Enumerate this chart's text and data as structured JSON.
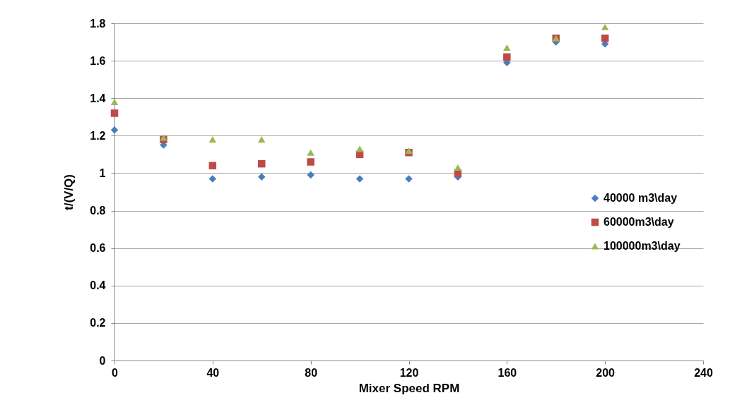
{
  "chart_data": {
    "type": "scatter",
    "xlabel": "Mixer Speed RPM",
    "ylabel": "t/(V/Q)",
    "x": [
      0,
      20,
      40,
      60,
      80,
      100,
      120,
      140,
      160,
      180,
      200
    ],
    "xlim": [
      0,
      240
    ],
    "xticks": [
      0,
      40,
      80,
      120,
      160,
      200,
      240
    ],
    "ylim": [
      0,
      1.8
    ],
    "yticks": [
      0,
      0.2,
      0.4,
      0.6,
      0.8,
      1,
      1.2,
      1.4,
      1.6,
      1.8
    ],
    "grid": "y",
    "legend": "right",
    "series": [
      {
        "name": "40000 m3\\day",
        "color": "#4a7ebb",
        "marker": "diamond",
        "values": [
          1.23,
          1.15,
          0.97,
          0.98,
          0.99,
          0.97,
          0.97,
          0.98,
          1.59,
          1.7,
          1.69
        ]
      },
      {
        "name": "60000m3\\day",
        "color": "#be4b48",
        "marker": "square",
        "values": [
          1.32,
          1.18,
          1.04,
          1.05,
          1.06,
          1.1,
          1.11,
          1.0,
          1.62,
          1.72,
          1.72
        ]
      },
      {
        "name": "100000m3\\day",
        "color": "#98b954",
        "marker": "triangle",
        "values": [
          1.38,
          1.19,
          1.18,
          1.18,
          1.11,
          1.13,
          1.12,
          1.03,
          1.67,
          1.72,
          1.78
        ]
      }
    ]
  }
}
